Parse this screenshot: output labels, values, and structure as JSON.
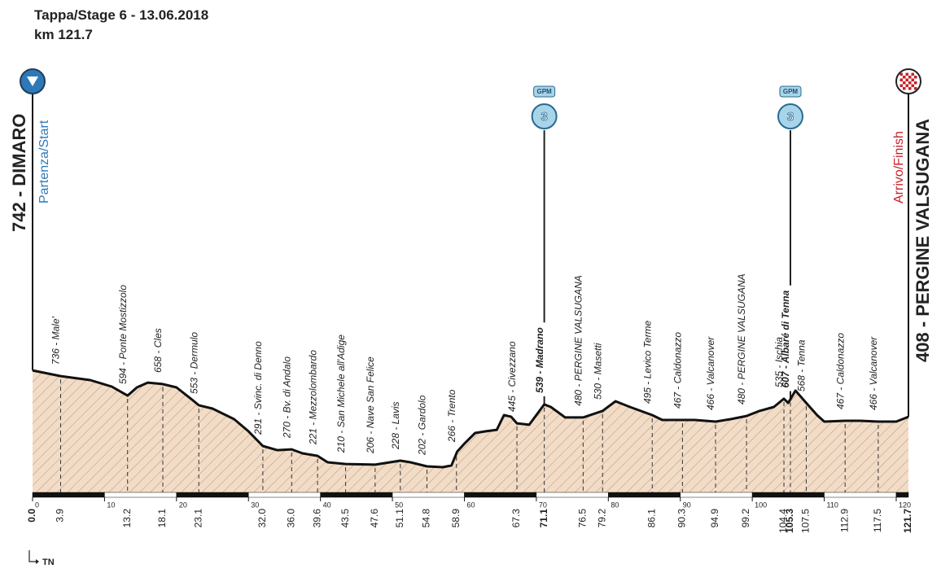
{
  "chart_data": {
    "type": "profile",
    "title": "Tappa/Stage 6 - 13.06.2018",
    "subtitle": "km 121.7",
    "region": "TN",
    "xlim": [
      0,
      121.7
    ],
    "ylim": [
      0,
      800
    ],
    "xticks": [
      0,
      10,
      20,
      30,
      40,
      50,
      60,
      70,
      80,
      90,
      100,
      110,
      120
    ],
    "profile": {
      "km": [
        0,
        3.9,
        8,
        11,
        13.2,
        14.5,
        16,
        18.1,
        20,
        22,
        23.1,
        25,
        28,
        30,
        32,
        34,
        36,
        37.5,
        39.6,
        41,
        43.5,
        47.6,
        51.1,
        52.5,
        54.8,
        57,
        58.2,
        59,
        60,
        61.5,
        63,
        64.5,
        65.5,
        66.5,
        67.3,
        69,
        71.1,
        72,
        74,
        76.5,
        79.2,
        81,
        83,
        86.1,
        87.5,
        90.3,
        92,
        94.9,
        97,
        99.2,
        101,
        103,
        104.4,
        105,
        106,
        107.5,
        109,
        110,
        112.9,
        115,
        117.5,
        120,
        121.7
      ],
      "elevation": [
        741,
        707,
        683,
        644,
        590,
        639,
        668,
        659,
        639,
        571,
        532,
        512,
        449,
        376,
        288,
        263,
        268,
        244,
        229,
        190,
        180,
        176,
        200,
        190,
        166,
        161,
        171,
        254,
        302,
        366,
        376,
        385,
        473,
        463,
        424,
        415,
        537,
        522,
        459,
        459,
        498,
        556,
        522,
        473,
        444,
        444,
        444,
        434,
        449,
        468,
        498,
        522,
        571,
        546,
        620,
        546,
        473,
        434,
        439,
        439,
        434,
        434,
        463
      ],
      "color": "#f3dcc6"
    },
    "start": {
      "km": {
        "value": 0,
        "label": "0.0"
      },
      "name": "742 - DIMARO",
      "caption": "Partenza/Start",
      "color": "#2f78b7"
    },
    "finish": {
      "km": 121.7,
      "name": "408 - PERGINE VALSUGANA",
      "caption": "Arrivo/Finish",
      "color": "#c8202a"
    },
    "waypoints": [
      {
        "km": 3.9,
        "label": "736 - Male'"
      },
      {
        "km": 13.2,
        "label": "594 - Ponte Mostizzolo"
      },
      {
        "km": 18.1,
        "label": "658 - Cles"
      },
      {
        "km": 23.1,
        "label": "553 - Dermulo"
      },
      {
        "km": {
          "value": 32,
          "label": "32.0"
        },
        "label": "291 - Svinc. di Denno"
      },
      {
        "km": {
          "value": 36,
          "label": "36.0"
        },
        "label": "270 - Bv. di Andalo"
      },
      {
        "km": 39.6,
        "label": "221 - Mezzolombardo"
      },
      {
        "km": 43.5,
        "label": "210 - San Michele all'Adige"
      },
      {
        "km": 47.6,
        "label": "206 - Nave San Felice"
      },
      {
        "km": 51.1,
        "label": "228 - Lavis"
      },
      {
        "km": 54.8,
        "label": "202 - Gardolo"
      },
      {
        "km": 58.9,
        "label": "266 - Trento"
      },
      {
        "km": 67.3,
        "label": "445 - Civezzano"
      },
      {
        "km": 71.1,
        "label": "539 - Madrano",
        "bold": true,
        "climb": {
          "label": "GPM",
          "category": 3
        }
      },
      {
        "km": 76.5,
        "label": "480 - PERGINE VALSUGANA"
      },
      {
        "km": 79.2,
        "label": "530 - Masetti"
      },
      {
        "km": 86.1,
        "label": "495 - Levico Terme"
      },
      {
        "km": 90.3,
        "label": "467 - Caldonazzo"
      },
      {
        "km": 94.9,
        "label": "466 - Valcanover"
      },
      {
        "km": 99.2,
        "label": "480 - PERGINE VALSUGANA"
      },
      {
        "km": 104.4,
        "label": "535 - Ischia"
      },
      {
        "km": 105.3,
        "label": "607 - Albaré di Tenna",
        "bold": true,
        "climb": {
          "label": "GPM",
          "category": 3
        }
      },
      {
        "km": 107.5,
        "label": "568 - Tenna"
      },
      {
        "km": 112.9,
        "label": "467 - Caldonazzo"
      },
      {
        "km": 117.5,
        "label": "466 - Valcanover"
      }
    ]
  }
}
